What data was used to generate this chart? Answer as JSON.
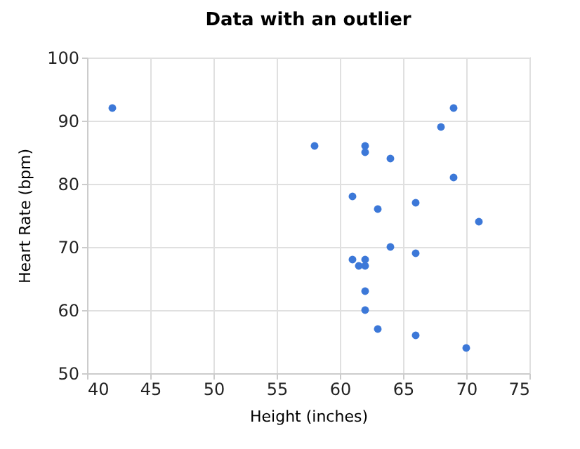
{
  "chart_data": {
    "type": "scatter",
    "title": "Data with an outlier",
    "xlabel": "Height (inches)",
    "ylabel": "Heart Rate (bpm)",
    "x": [
      42,
      58,
      62,
      62,
      64,
      69,
      68,
      69,
      61,
      66,
      63,
      71,
      64,
      66,
      61,
      62,
      61.5,
      62,
      62,
      62,
      63,
      66,
      70
    ],
    "series": [
      {
        "color": "#3c78d8",
        "values": [
          92,
          86,
          86,
          85,
          84,
          92,
          89,
          81,
          78,
          77,
          76,
          74,
          70,
          69,
          68,
          68,
          67,
          67,
          63,
          60,
          57,
          56,
          54
        ]
      }
    ],
    "xlim": [
      40,
      75
    ],
    "xticks": [
      40,
      45,
      50,
      55,
      60,
      65,
      70,
      75
    ],
    "ylim": [
      50,
      100
    ],
    "yticks": [
      50,
      60,
      70,
      80,
      90,
      100
    ],
    "grid": true,
    "marker": "circle",
    "legend": false
  }
}
